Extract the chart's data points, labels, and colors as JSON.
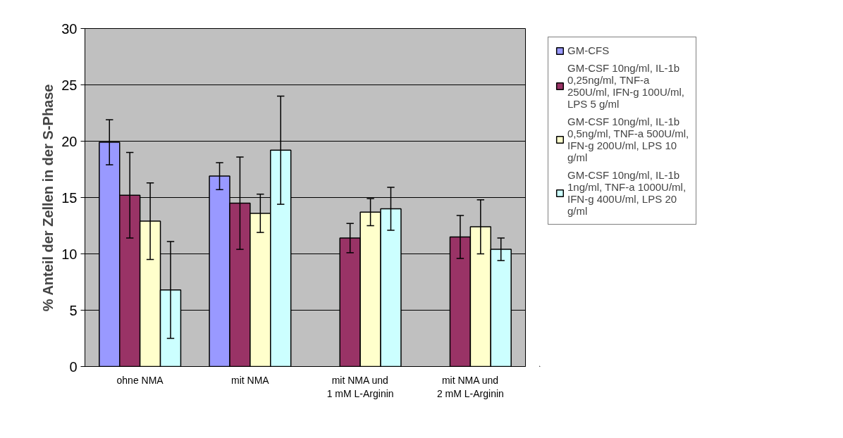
{
  "chart_data": {
    "type": "bar",
    "ylabel": "% Anteil der Zellen in der S-Phase",
    "categories": [
      "ohne NMA",
      "mit NMA",
      "mit NMA und\n1 mM L-Arginin",
      "mit NMA und\n2 mM L-Arginin"
    ],
    "series": [
      {
        "name": "GM-CFS",
        "color": "#9999ff",
        "values": [
          19.9,
          16.9,
          null,
          null
        ],
        "errors": [
          2.0,
          1.2,
          null,
          null
        ]
      },
      {
        "name": "GM-CSF 10ng/ml, IL-1b 0,25ng/ml, TNF-a 250U/ml, IFN-g 100U/ml, LPS 5 g/ml",
        "color": "#993366",
        "values": [
          15.2,
          14.5,
          11.4,
          11.5
        ],
        "errors": [
          3.8,
          4.1,
          1.3,
          1.9
        ]
      },
      {
        "name": "GM-CSF 10ng/ml, IL-1b 0,5ng/ml, TNF-a 500U/ml, IFN-g 200U/ml, LPS 10 g/ml",
        "color": "#ffffcc",
        "values": [
          12.9,
          13.6,
          13.7,
          12.4
        ],
        "errors": [
          3.4,
          1.7,
          1.2,
          2.4
        ]
      },
      {
        "name": "GM-CSF 10ng/ml, IL-1b 1ng/ml, TNF-a 1000U/ml, IFN-g 400U/ml, LPS 20 g/ml",
        "color": "#ccffff",
        "values": [
          6.8,
          19.2,
          14.0,
          10.4
        ],
        "errors": [
          4.3,
          4.8,
          1.9,
          1.0
        ]
      }
    ],
    "ylim": [
      0,
      30
    ],
    "yticks": [
      0,
      5,
      10,
      15,
      20,
      25,
      30
    ],
    "grid": "y",
    "legend": "right"
  }
}
